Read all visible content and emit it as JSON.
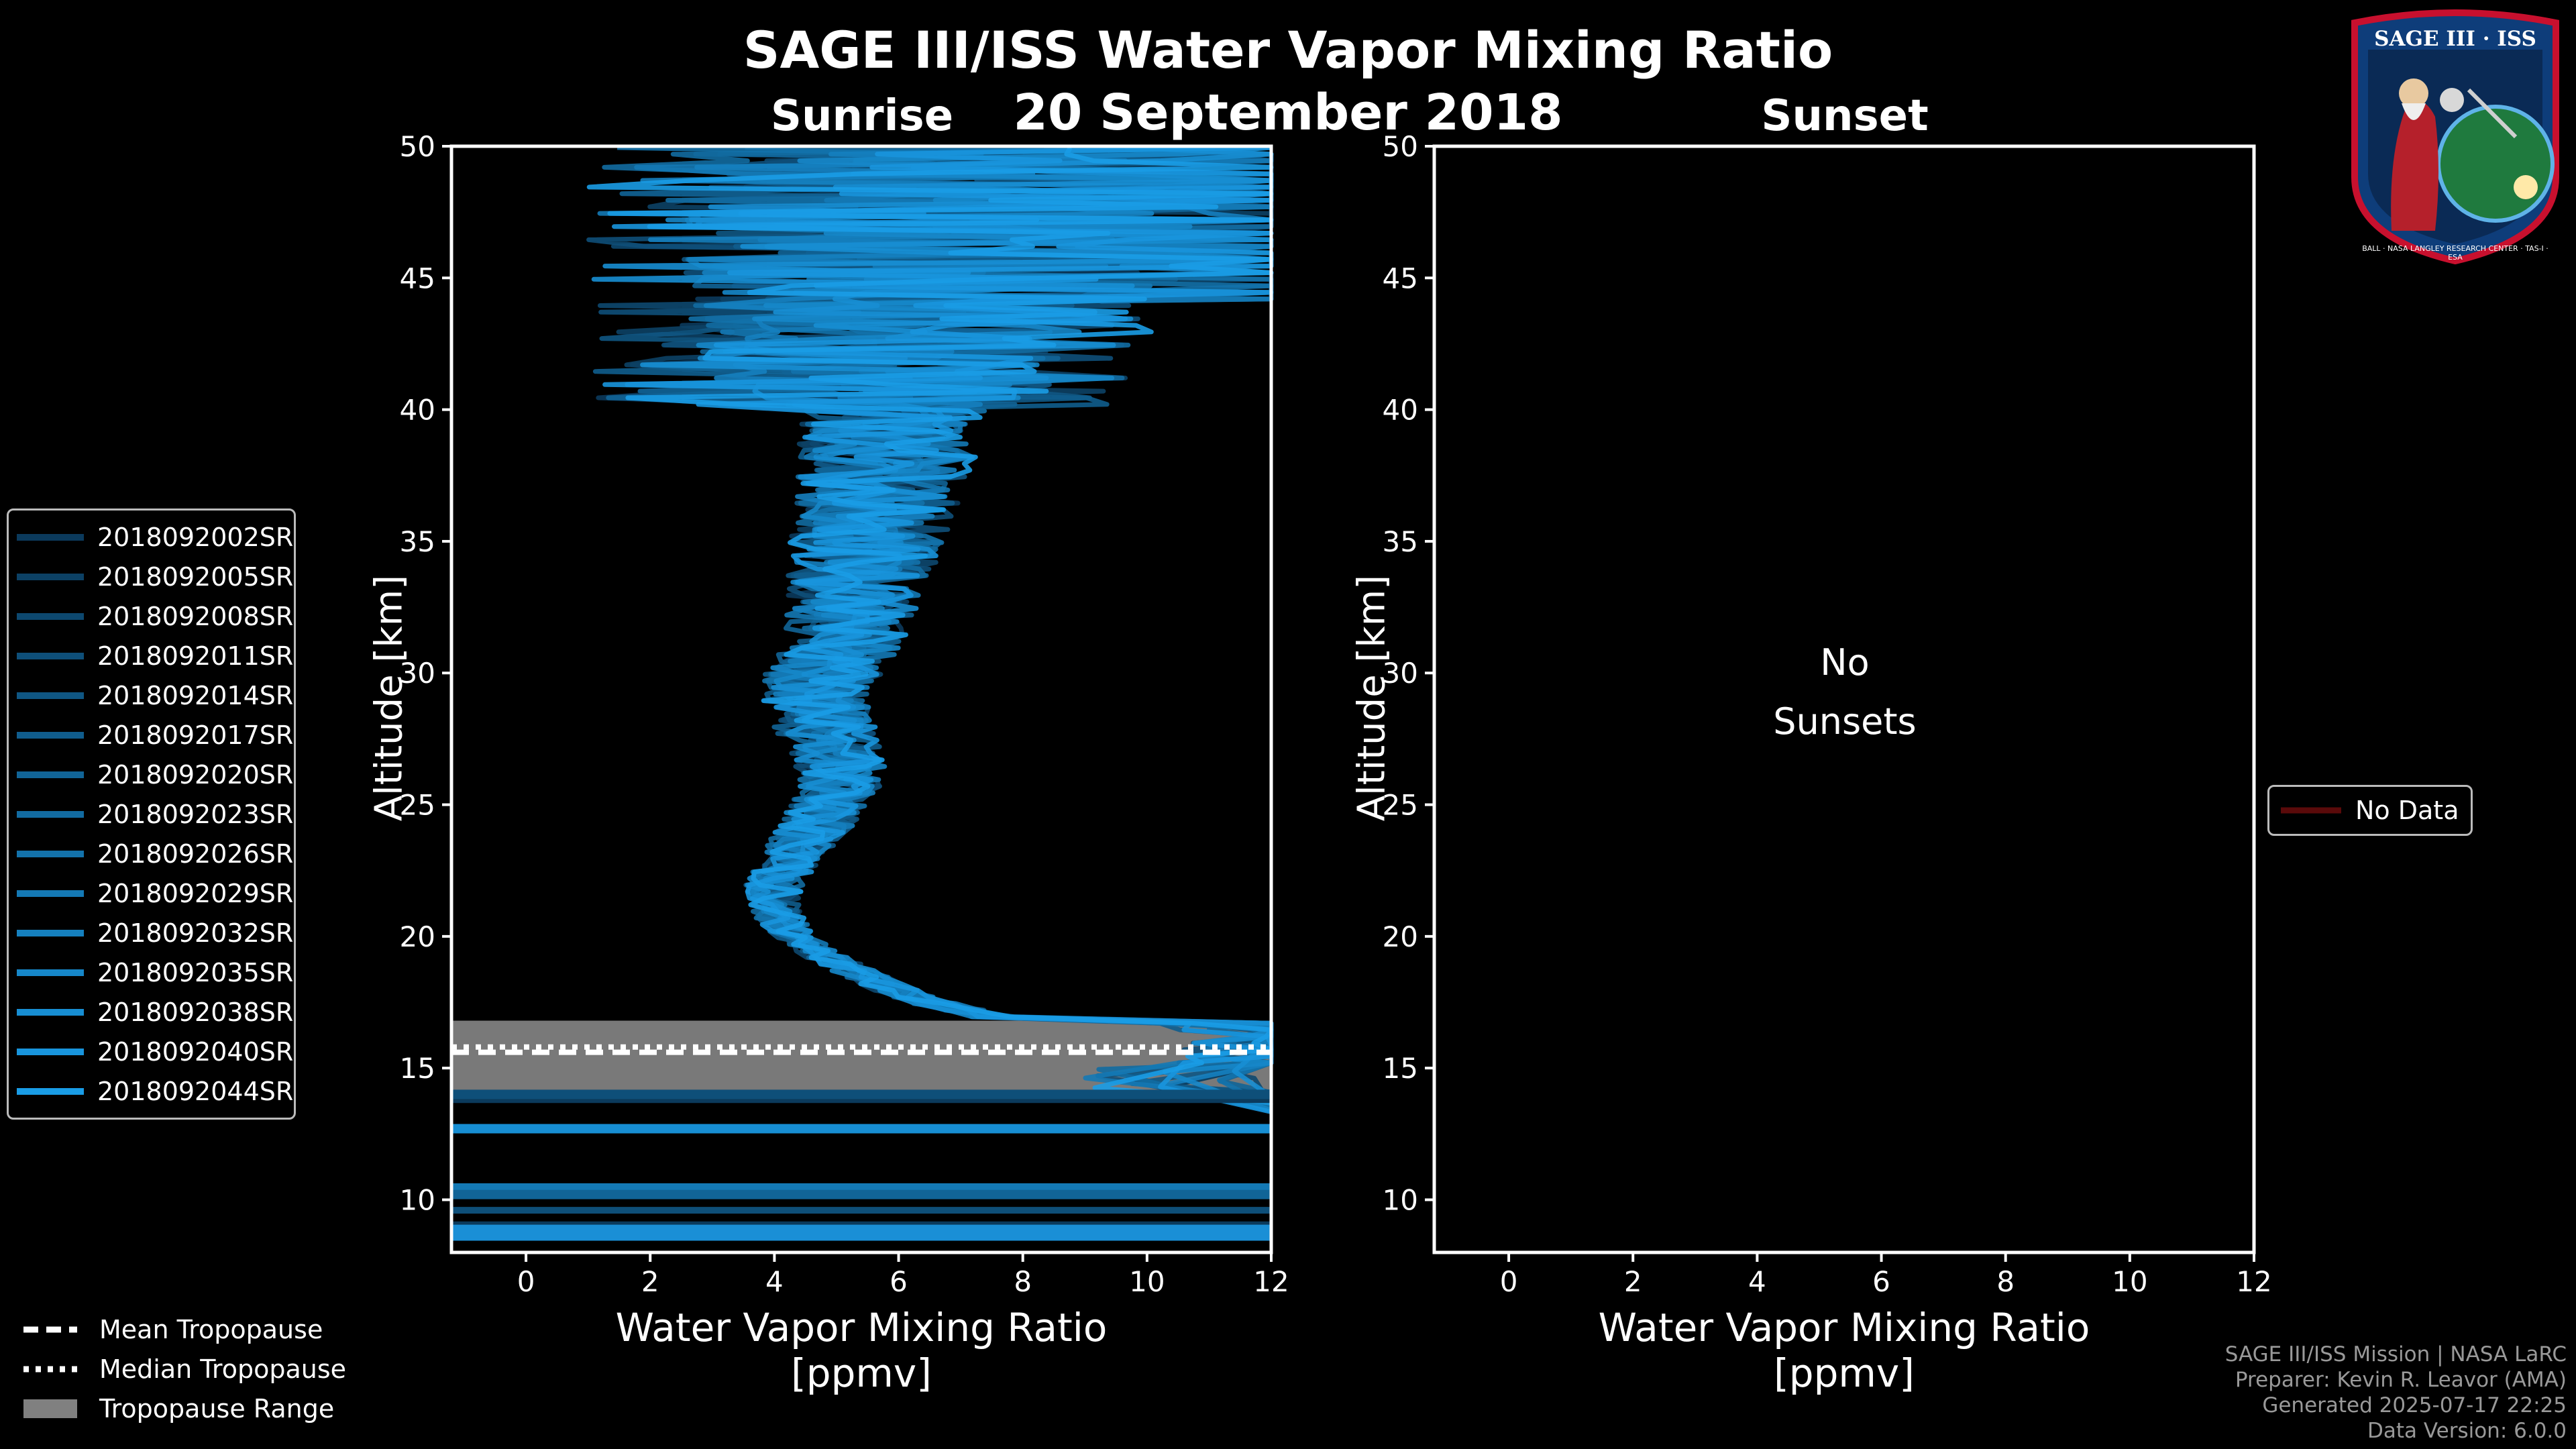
{
  "title": "SAGE III/ISS Water Vapor Mixing Ratio",
  "date": "20 September 2018",
  "badge": {
    "top_text": "SAGE III · ISS",
    "ring_text": "BALL · NASA LANGLEY RESEARCH CENTER · TAS-I · ESA"
  },
  "colors": {
    "profile": "#1a8fd6",
    "tropopause_range": "#808080",
    "no_data": "#5a0a0a"
  },
  "chart_data": [
    {
      "type": "line",
      "panel": "Sunrise",
      "title": "Sunrise",
      "xlabel": "Water Vapor Mixing Ratio",
      "xunit": "[ppmv]",
      "ylabel": "Altitude [km]",
      "xlim": [
        -1.2,
        12
      ],
      "ylim": [
        8,
        50
      ],
      "xticks": [
        "0",
        "2",
        "4",
        "6",
        "8",
        "10",
        "12"
      ],
      "yticks": [
        "10",
        "15",
        "20",
        "25",
        "30",
        "35",
        "40",
        "45",
        "50"
      ],
      "series": [
        {
          "name": "2018092002SR",
          "color": "#0b3a5c"
        },
        {
          "name": "2018092005SR",
          "color": "#0c4165"
        },
        {
          "name": "2018092008SR",
          "color": "#0d486f"
        },
        {
          "name": "2018092011SR",
          "color": "#0e4f79"
        },
        {
          "name": "2018092014SR",
          "color": "#0f5683"
        },
        {
          "name": "2018092017SR",
          "color": "#105d8d"
        },
        {
          "name": "2018092020SR",
          "color": "#116497"
        },
        {
          "name": "2018092023SR",
          "color": "#126ba1"
        },
        {
          "name": "2018092026SR",
          "color": "#1372ab"
        },
        {
          "name": "2018092029SR",
          "color": "#1479b5"
        },
        {
          "name": "2018092032SR",
          "color": "#1580bf"
        },
        {
          "name": "2018092035SR",
          "color": "#1687c9"
        },
        {
          "name": "2018092038SR",
          "color": "#178ed3"
        },
        {
          "name": "2018092040SR",
          "color": "#1895dd"
        },
        {
          "name": "2018092044SR",
          "color": "#199ce6"
        }
      ],
      "mean_profile": {
        "altitude": [
          16.5,
          17,
          17.5,
          18,
          19,
          20,
          21,
          22,
          23,
          24,
          25,
          26,
          27,
          28,
          29,
          30,
          31,
          32,
          33,
          34,
          35,
          36,
          37,
          38,
          39,
          40,
          41,
          42,
          43,
          44,
          45,
          46,
          47,
          48,
          49,
          50
        ],
        "value": [
          8.5,
          7.4,
          6.5,
          5.9,
          5.0,
          4.3,
          4.0,
          4.0,
          4.3,
          4.6,
          4.9,
          5.1,
          5.0,
          4.8,
          4.7,
          4.8,
          5.0,
          5.2,
          5.3,
          5.4,
          5.5,
          5.6,
          5.7,
          5.8,
          5.9,
          6.0,
          6.1,
          6.2,
          6.3,
          6.4,
          6.5,
          6.6,
          6.7,
          6.7,
          6.8,
          6.8
        ]
      },
      "tropopause": {
        "mean_km": 15.6,
        "median_km": 15.8,
        "range_km": [
          13.9,
          16.8
        ]
      },
      "legend": [
        "Mean Tropopause",
        "Median Tropopause",
        "Tropopause Range"
      ]
    },
    {
      "type": "line",
      "panel": "Sunset",
      "title": "Sunset",
      "xlabel": "Water Vapor Mixing Ratio",
      "xunit": "[ppmv]",
      "ylabel": "Altitude [km]",
      "xlim": [
        -1.2,
        12
      ],
      "ylim": [
        8,
        50
      ],
      "xticks": [
        "0",
        "2",
        "4",
        "6",
        "8",
        "10",
        "12"
      ],
      "yticks": [
        "10",
        "15",
        "20",
        "25",
        "30",
        "35",
        "40",
        "45",
        "50"
      ],
      "note_line1": "No",
      "note_line2": "Sunsets",
      "series": [],
      "legend": [
        "No Data"
      ]
    }
  ],
  "credits": [
    "SAGE III/ISS Mission | NASA LaRC",
    "Preparer: Kevin R. Leavor (AMA)",
    "Generated 2025-07-17 22:25",
    "Data Version: 6.0.0"
  ]
}
